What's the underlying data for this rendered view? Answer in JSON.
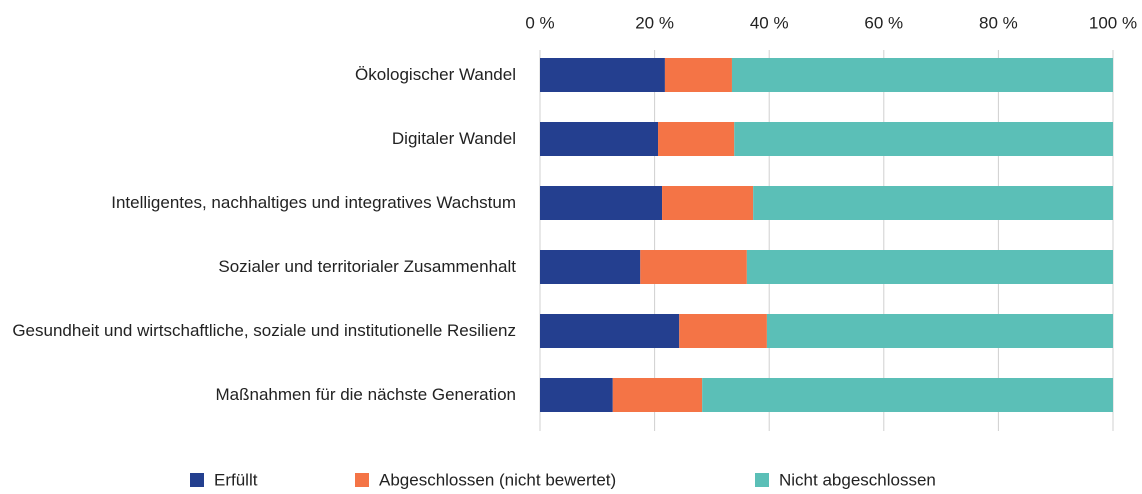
{
  "chart_data": {
    "type": "stacked-bar-horizontal",
    "categories": [
      "Ökologischer Wandel",
      "Digitaler Wandel",
      "Intelligentes, nachhaltiges und integratives Wachstum",
      "Sozialer und territorialer Zusammenhalt",
      "Gesundheit und wirtschaftliche, soziale und institutionelle Resilienz",
      "Maßnahmen für die nächste Generation"
    ],
    "series": [
      {
        "name": "Erfüllt",
        "color": "#243f8f",
        "values": [
          21.8,
          20.6,
          21.3,
          17.5,
          24.3,
          12.7
        ]
      },
      {
        "name": "Abgeschlossen (nicht bewertet)",
        "color": "#f47446",
        "values": [
          11.7,
          13.3,
          15.9,
          18.6,
          15.3,
          15.6
        ]
      },
      {
        "name": "Nicht abgeschlossen",
        "color": "#5bbfb7",
        "values": [
          66.5,
          66.1,
          62.8,
          63.9,
          60.4,
          71.7
        ]
      }
    ],
    "xlim": [
      0,
      100
    ],
    "xticks": [
      {
        "value": 0,
        "label": "0 %"
      },
      {
        "value": 20,
        "label": "20 %"
      },
      {
        "value": 40,
        "label": "40 %"
      },
      {
        "value": 60,
        "label": "60 %"
      },
      {
        "value": 80,
        "label": "80 %"
      },
      {
        "value": 100,
        "label": "100 %"
      }
    ],
    "grid": true,
    "legend": "bottom"
  }
}
